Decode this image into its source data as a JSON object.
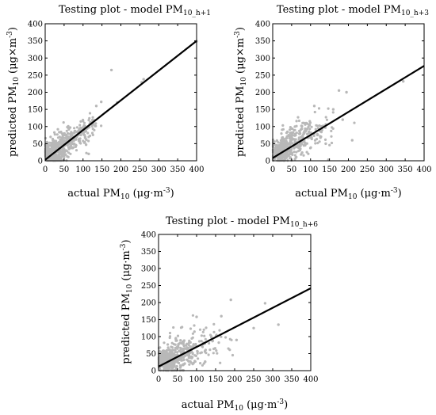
{
  "chart_data": [
    {
      "type": "scatter",
      "title": {
        "main": "Testing plot - model PM",
        "sub": "10_h+1"
      },
      "xlabel": {
        "main": "actual PM",
        "sub": "10",
        "unit": " (μg·m",
        "sup": "-3",
        "tail": ")"
      },
      "ylabel": {
        "main": "predicted PM",
        "sub": "10",
        "unit": " (μg×m",
        "sup": "-3",
        "tail": ")"
      },
      "xlim": [
        0,
        400
      ],
      "ylim": [
        0,
        400
      ],
      "xticks": [
        "0",
        "50",
        "100",
        "150",
        "200",
        "250",
        "300",
        "350",
        "400"
      ],
      "yticks": [
        "0",
        "50",
        "100",
        "150",
        "200",
        "250",
        "300",
        "350",
        "400"
      ],
      "grid": false,
      "fit_line": {
        "x": [
          0,
          400
        ],
        "y": [
          3,
          350
        ]
      },
      "cloud": [
        {
          "xc": 22,
          "yc": 25,
          "xs": 14,
          "ys": 15,
          "n": 320
        },
        {
          "xc": 55,
          "yc": 55,
          "xs": 18,
          "ys": 18,
          "n": 150
        },
        {
          "xc": 95,
          "yc": 88,
          "xs": 16,
          "ys": 18,
          "n": 70
        },
        {
          "xc": 125,
          "yc": 110,
          "xs": 10,
          "ys": 14,
          "n": 20
        }
      ],
      "outliers": [
        {
          "x": 175,
          "y": 265
        },
        {
          "x": 260,
          "y": 238
        },
        {
          "x": 255,
          "y": 229
        },
        {
          "x": 148,
          "y": 172
        },
        {
          "x": 190,
          "y": 170
        },
        {
          "x": 108,
          "y": 47
        },
        {
          "x": 115,
          "y": 20
        },
        {
          "x": 135,
          "y": 160
        },
        {
          "x": 400,
          "y": 349
        }
      ]
    },
    {
      "type": "scatter",
      "title": {
        "main": "Testing plot - model PM",
        "sub": "10_h+3"
      },
      "xlabel": {
        "main": "actual PM",
        "sub": "10",
        "unit": " (μg·m",
        "sup": "-3",
        "tail": ")"
      },
      "ylabel": {
        "main": "predicted PM",
        "sub": "10",
        "unit": " (μg×m",
        "sup": "-3",
        "tail": ")"
      },
      "xlim": [
        0,
        400
      ],
      "ylim": [
        0,
        400
      ],
      "xticks": [
        "0",
        "50",
        "100",
        "150",
        "200",
        "250",
        "300",
        "350",
        "400"
      ],
      "yticks": [
        "0",
        "50",
        "100",
        "150",
        "200",
        "250",
        "300",
        "350",
        "400"
      ],
      "grid": false,
      "fit_line": {
        "x": [
          0,
          400
        ],
        "y": [
          8,
          277
        ]
      },
      "cloud": [
        {
          "xc": 22,
          "yc": 28,
          "xs": 14,
          "ys": 15,
          "n": 320
        },
        {
          "xc": 55,
          "yc": 55,
          "xs": 20,
          "ys": 22,
          "n": 160
        },
        {
          "xc": 95,
          "yc": 80,
          "xs": 20,
          "ys": 25,
          "n": 70
        },
        {
          "xc": 140,
          "yc": 95,
          "xs": 20,
          "ys": 25,
          "n": 25
        }
      ],
      "outliers": [
        {
          "x": 175,
          "y": 205
        },
        {
          "x": 195,
          "y": 200
        },
        {
          "x": 345,
          "y": 232
        },
        {
          "x": 210,
          "y": 60
        },
        {
          "x": 185,
          "y": 120
        },
        {
          "x": 160,
          "y": 150
        },
        {
          "x": 110,
          "y": 160
        },
        {
          "x": 140,
          "y": 50
        }
      ]
    },
    {
      "type": "scatter",
      "title": {
        "main": "Testing plot - model PM",
        "sub": "10_h+6"
      },
      "xlabel": {
        "main": "actual PM",
        "sub": "10",
        "unit": " (μg·m",
        "sup": "-3",
        "tail": ")"
      },
      "ylabel": {
        "main": "predicted PM",
        "sub": "10",
        "unit": " (μg·m",
        "sup": "-3",
        "tail": ")"
      },
      "xlim": [
        0,
        400
      ],
      "ylim": [
        0,
        400
      ],
      "xticks": [
        "0",
        "50",
        "100",
        "150",
        "200",
        "250",
        "300",
        "350",
        "400"
      ],
      "yticks": [
        "0",
        "50",
        "100",
        "150",
        "200",
        "250",
        "300",
        "350",
        "400"
      ],
      "grid": false,
      "fit_line": {
        "x": [
          0,
          400
        ],
        "y": [
          12,
          242
        ]
      },
      "cloud": [
        {
          "xc": 22,
          "yc": 30,
          "xs": 14,
          "ys": 15,
          "n": 320
        },
        {
          "xc": 55,
          "yc": 50,
          "xs": 20,
          "ys": 24,
          "n": 160
        },
        {
          "xc": 95,
          "yc": 70,
          "xs": 22,
          "ys": 28,
          "n": 70
        },
        {
          "xc": 150,
          "yc": 85,
          "xs": 25,
          "ys": 30,
          "n": 25
        }
      ],
      "outliers": [
        {
          "x": 190,
          "y": 208
        },
        {
          "x": 280,
          "y": 198
        },
        {
          "x": 315,
          "y": 135
        },
        {
          "x": 250,
          "y": 125
        },
        {
          "x": 165,
          "y": 160
        },
        {
          "x": 100,
          "y": 158
        },
        {
          "x": 205,
          "y": 90
        }
      ]
    }
  ],
  "colors": {
    "points": "#b8b8b8",
    "line": "#000000",
    "axis": "#000000"
  }
}
